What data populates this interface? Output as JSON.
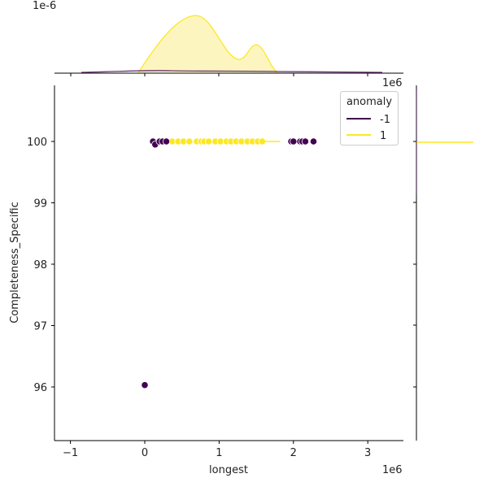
{
  "chart_data": {
    "type": "scatter",
    "title": "",
    "xlabel": "longest",
    "ylabel": "Completeness_Specific",
    "x_offset_label": "1e6",
    "y_top_marginal_offset_label": "1e-6",
    "right_marginal_offset_label": "1e6",
    "xlim": [
      -1.2,
      3.5
    ],
    "ylim": [
      95.1,
      100.9
    ],
    "x_ticks": [
      -1,
      0,
      1,
      2,
      3
    ],
    "x_tick_labels": [
      "−1",
      "0",
      "1",
      "2",
      "3"
    ],
    "y_ticks": [
      96,
      97,
      98,
      99,
      100
    ],
    "y_tick_labels": [
      "96",
      "97",
      "98",
      "99",
      "100"
    ],
    "grid": false,
    "legend": {
      "title": "anomaly",
      "position": "upper right",
      "entries": [
        {
          "label": "-1",
          "color": "#440154"
        },
        {
          "label": "1",
          "color": "#fde725"
        }
      ]
    },
    "series": [
      {
        "name": "-1",
        "color": "#440154",
        "x": [
          0.0,
          0.11,
          0.14,
          0.2,
          0.24,
          0.29,
          1.97,
          2.0,
          2.09,
          2.12,
          2.16,
          2.27
        ],
        "y": [
          96.03,
          100.0,
          99.95,
          100.0,
          100.0,
          100.0,
          100.0,
          100.0,
          100.0,
          100.0,
          100.0,
          100.0
        ]
      },
      {
        "name": "1",
        "color": "#fde725",
        "x": [
          0.2,
          0.37,
          0.45,
          0.52,
          0.6,
          0.7,
          0.76,
          0.8,
          0.86,
          0.95,
          1.02,
          1.1,
          1.16,
          1.23,
          1.3,
          1.38,
          1.45,
          1.52,
          1.58
        ],
        "y": [
          100.0,
          100.0,
          100.0,
          100.0,
          100.0,
          100.0,
          100.0,
          100.0,
          100.0,
          100.0,
          100.0,
          100.0,
          100.0,
          100.0,
          100.0,
          100.0,
          100.0,
          100.0,
          100.0
        ]
      }
    ],
    "marginal_top": {
      "type": "kde",
      "series": [
        {
          "name": "1",
          "peaks": [
            {
              "x": 0.7,
              "rel_height": 1.0
            },
            {
              "x": 1.5,
              "rel_height": 0.48
            }
          ],
          "trough": {
            "x": 1.17,
            "rel_height": 0.22
          },
          "range": [
            0.3,
            1.82
          ]
        },
        {
          "name": "-1",
          "shape": "flat near zero",
          "range": [
            -1.2,
            3.5
          ]
        }
      ]
    },
    "marginal_right": {
      "type": "kde",
      "description": "spike at y=100"
    }
  }
}
